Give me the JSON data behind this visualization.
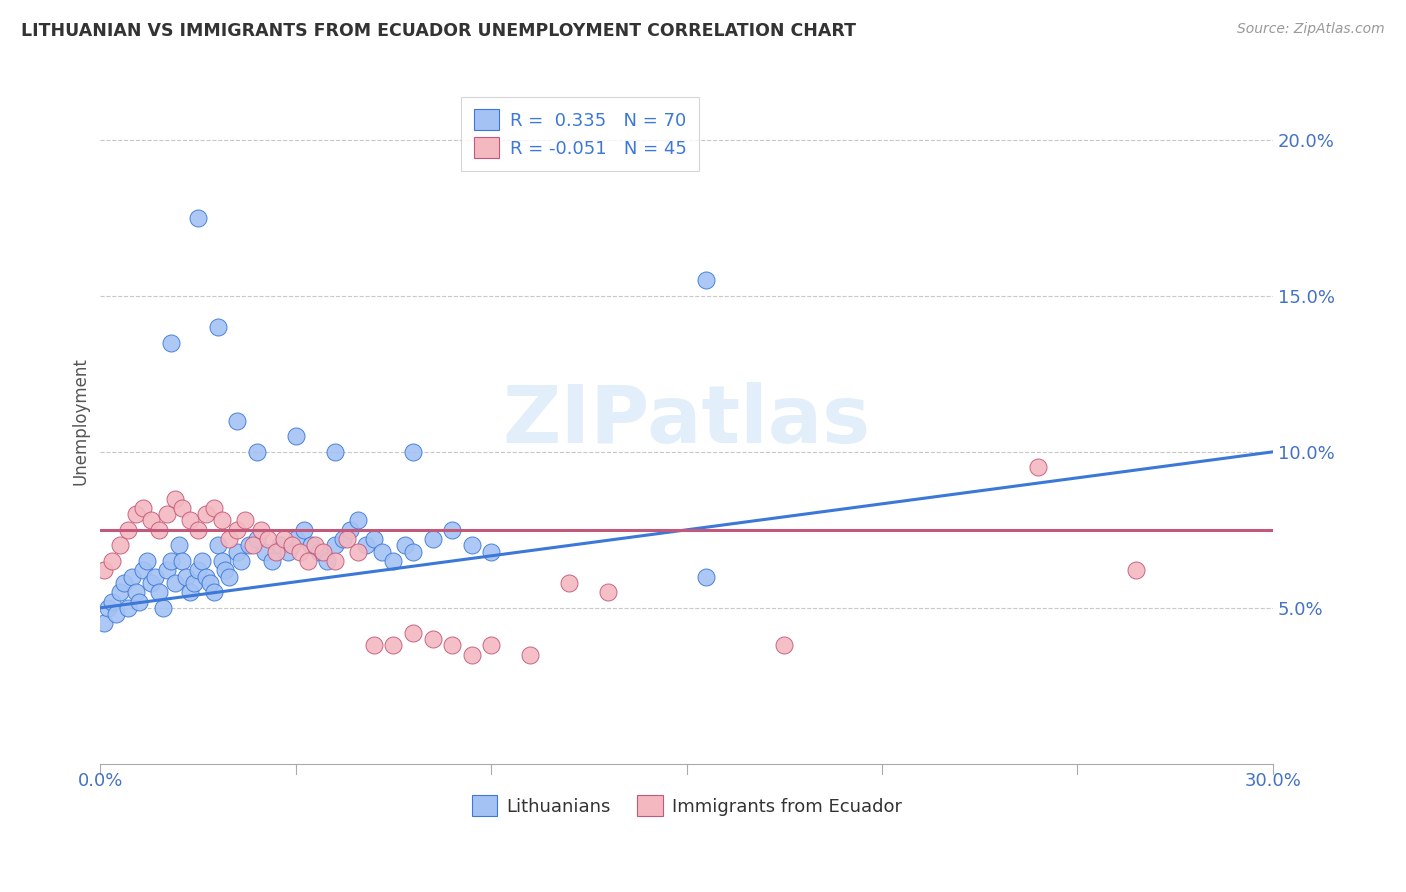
{
  "title": "LITHUANIAN VS IMMIGRANTS FROM ECUADOR UNEMPLOYMENT CORRELATION CHART",
  "source": "Source: ZipAtlas.com",
  "ylabel": "Unemployment",
  "xlim": [
    0.0,
    0.3
  ],
  "ylim": [
    0.0,
    0.22
  ],
  "yticks": [
    0.05,
    0.1,
    0.15,
    0.2
  ],
  "ytick_labels": [
    "5.0%",
    "10.0%",
    "15.0%",
    "20.0%"
  ],
  "xtick_labels_bottom": [
    "0.0%",
    "30.0%"
  ],
  "xtick_positions_bottom": [
    0.0,
    0.3
  ],
  "background_color": "#ffffff",
  "grid_color": "#c8c8c8",
  "blue_scatter_color": "#a4c2f4",
  "pink_scatter_color": "#f4b8c1",
  "blue_line_color": "#3c78d8",
  "pink_line_color": "#c2587a",
  "label_color": "#4472c4",
  "axis_label_color": "#555555",
  "r_blue": "0.335",
  "n_blue": "70",
  "r_pink": "-0.051",
  "n_pink": "45",
  "legend_label_blue": "Lithuanians",
  "legend_label_pink": "Immigrants from Ecuador",
  "watermark": "ZIPatlas",
  "blue_line_x0": 0.0,
  "blue_line_y0": 0.05,
  "blue_line_x1": 0.3,
  "blue_line_y1": 0.1,
  "pink_line_x0": 0.0,
  "pink_line_y0": 0.075,
  "pink_line_x1": 0.3,
  "pink_line_y1": 0.075,
  "blue_x": [
    0.001,
    0.002,
    0.003,
    0.004,
    0.005,
    0.006,
    0.007,
    0.008,
    0.009,
    0.01,
    0.011,
    0.012,
    0.013,
    0.014,
    0.015,
    0.016,
    0.017,
    0.018,
    0.019,
    0.02,
    0.021,
    0.022,
    0.023,
    0.024,
    0.025,
    0.026,
    0.027,
    0.028,
    0.029,
    0.03,
    0.031,
    0.032,
    0.033,
    0.035,
    0.036,
    0.038,
    0.04,
    0.042,
    0.044,
    0.046,
    0.048,
    0.05,
    0.052,
    0.054,
    0.056,
    0.058,
    0.06,
    0.062,
    0.064,
    0.066,
    0.068,
    0.07,
    0.072,
    0.075,
    0.078,
    0.08,
    0.085,
    0.09,
    0.095,
    0.1,
    0.018,
    0.025,
    0.03,
    0.035,
    0.04,
    0.05,
    0.06,
    0.08,
    0.155,
    0.155
  ],
  "blue_y": [
    0.045,
    0.05,
    0.052,
    0.048,
    0.055,
    0.058,
    0.05,
    0.06,
    0.055,
    0.052,
    0.062,
    0.065,
    0.058,
    0.06,
    0.055,
    0.05,
    0.062,
    0.065,
    0.058,
    0.07,
    0.065,
    0.06,
    0.055,
    0.058,
    0.062,
    0.065,
    0.06,
    0.058,
    0.055,
    0.07,
    0.065,
    0.062,
    0.06,
    0.068,
    0.065,
    0.07,
    0.072,
    0.068,
    0.065,
    0.07,
    0.068,
    0.072,
    0.075,
    0.07,
    0.068,
    0.065,
    0.07,
    0.072,
    0.075,
    0.078,
    0.07,
    0.072,
    0.068,
    0.065,
    0.07,
    0.068,
    0.072,
    0.075,
    0.07,
    0.068,
    0.135,
    0.175,
    0.14,
    0.11,
    0.1,
    0.105,
    0.1,
    0.1,
    0.155,
    0.06
  ],
  "pink_x": [
    0.001,
    0.003,
    0.005,
    0.007,
    0.009,
    0.011,
    0.013,
    0.015,
    0.017,
    0.019,
    0.021,
    0.023,
    0.025,
    0.027,
    0.029,
    0.031,
    0.033,
    0.035,
    0.037,
    0.039,
    0.041,
    0.043,
    0.045,
    0.047,
    0.049,
    0.051,
    0.053,
    0.055,
    0.057,
    0.06,
    0.063,
    0.066,
    0.07,
    0.075,
    0.08,
    0.085,
    0.09,
    0.095,
    0.1,
    0.11,
    0.12,
    0.13,
    0.175,
    0.24,
    0.265
  ],
  "pink_y": [
    0.062,
    0.065,
    0.07,
    0.075,
    0.08,
    0.082,
    0.078,
    0.075,
    0.08,
    0.085,
    0.082,
    0.078,
    0.075,
    0.08,
    0.082,
    0.078,
    0.072,
    0.075,
    0.078,
    0.07,
    0.075,
    0.072,
    0.068,
    0.072,
    0.07,
    0.068,
    0.065,
    0.07,
    0.068,
    0.065,
    0.072,
    0.068,
    0.038,
    0.038,
    0.042,
    0.04,
    0.038,
    0.035,
    0.038,
    0.035,
    0.058,
    0.055,
    0.038,
    0.095,
    0.062
  ]
}
